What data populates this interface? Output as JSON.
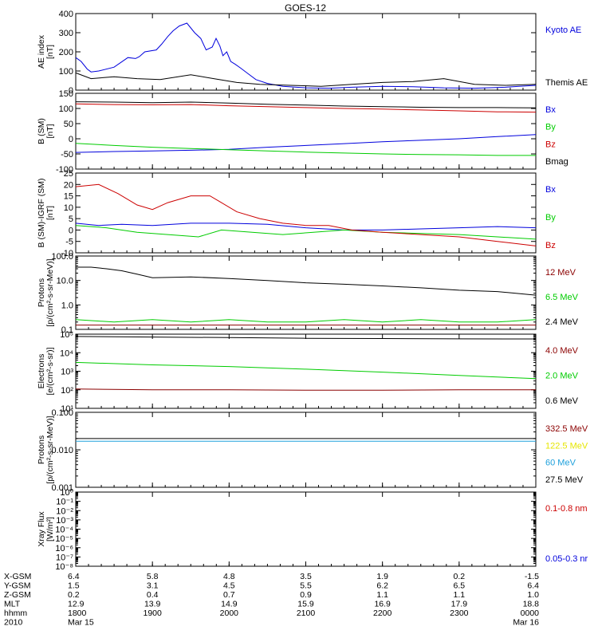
{
  "title": "GOES-12",
  "colors": {
    "black": "#000000",
    "red": "#cc0000",
    "darkred": "#8b0000",
    "green": "#00cc00",
    "blue": "#0000dd",
    "yellow": "#e6e600",
    "cyan": "#1ea0dc"
  },
  "chart_data": [
    {
      "type": "line",
      "title": "",
      "ylabel": [
        "AE index",
        "[nT]"
      ],
      "ylim": [
        0,
        400
      ],
      "yticks": [
        0,
        100,
        200,
        300,
        400
      ],
      "ytick_labels": [
        "0",
        "100",
        "200",
        "300",
        "400"
      ],
      "log": false,
      "legend": [
        {
          "label": "Kyoto AE",
          "color": "blue"
        },
        {
          "label": "Themis AE",
          "color": "black"
        }
      ],
      "series": [
        {
          "name": "Kyoto AE",
          "color": "blue",
          "x": [
            0.0,
            0.07,
            0.15,
            0.2,
            0.3,
            0.5,
            0.68,
            0.78,
            0.83,
            0.9,
            1.05,
            1.12,
            1.2,
            1.27,
            1.35,
            1.45,
            1.55,
            1.63,
            1.7,
            1.78,
            1.83,
            1.88,
            1.92,
            1.97,
            2.02,
            2.08,
            2.15,
            2.25,
            2.35,
            2.5,
            2.7,
            3.0,
            3.3,
            3.6,
            4.0,
            4.4,
            4.8,
            5.2,
            5.6,
            6.0
          ],
          "y": [
            170,
            150,
            110,
            95,
            100,
            120,
            170,
            165,
            175,
            200,
            210,
            240,
            280,
            310,
            335,
            350,
            300,
            270,
            210,
            225,
            270,
            230,
            180,
            200,
            150,
            135,
            115,
            85,
            55,
            35,
            20,
            12,
            10,
            15,
            20,
            18,
            12,
            10,
            15,
            25
          ]
        },
        {
          "name": "Themis AE",
          "color": "black",
          "x": [
            0.0,
            0.2,
            0.5,
            0.8,
            1.1,
            1.5,
            1.8,
            2.1,
            2.4,
            2.8,
            3.2,
            3.6,
            4.0,
            4.4,
            4.8,
            5.2,
            5.6,
            6.0
          ],
          "y": [
            90,
            60,
            70,
            60,
            55,
            80,
            60,
            40,
            30,
            25,
            20,
            30,
            40,
            45,
            60,
            30,
            25,
            30
          ]
        }
      ]
    },
    {
      "type": "line",
      "title": "",
      "ylabel": [
        "B (SM)",
        "[nT]"
      ],
      "ylim": [
        -100,
        150
      ],
      "yticks": [
        -100,
        -50,
        0,
        50,
        100,
        150
      ],
      "ytick_labels": [
        "-100",
        "-50",
        "0",
        "50",
        "100",
        "150"
      ],
      "log": false,
      "legend": [
        {
          "label": "Bx",
          "color": "blue"
        },
        {
          "label": "By",
          "color": "green"
        },
        {
          "label": "Bz",
          "color": "red"
        },
        {
          "label": "Bmag",
          "color": "black"
        }
      ],
      "series": [
        {
          "name": "Bx",
          "color": "blue",
          "x": [
            0,
            0.5,
            1.0,
            1.5,
            2.0,
            2.5,
            3.0,
            3.5,
            4.0,
            4.5,
            5.0,
            5.5,
            6.0
          ],
          "y": [
            -45,
            -42,
            -40,
            -38,
            -35,
            -28,
            -22,
            -16,
            -10,
            -5,
            0,
            7,
            14
          ]
        },
        {
          "name": "By",
          "color": "green",
          "x": [
            0,
            0.5,
            1.0,
            1.5,
            2.0,
            2.5,
            3.0,
            3.5,
            4.0,
            4.5,
            5.0,
            5.5,
            6.0
          ],
          "y": [
            -15,
            -22,
            -28,
            -32,
            -36,
            -40,
            -44,
            -47,
            -50,
            -52,
            -53,
            -55,
            -55
          ]
        },
        {
          "name": "Bz",
          "color": "red",
          "x": [
            0,
            0.5,
            1.0,
            1.5,
            2.0,
            2.5,
            3.0,
            3.5,
            4.0,
            4.5,
            5.0,
            5.5,
            6.0
          ],
          "y": [
            115,
            113,
            112,
            113,
            109,
            106,
            103,
            100,
            98,
            95,
            92,
            89,
            88
          ]
        },
        {
          "name": "Bmag",
          "color": "black",
          "x": [
            0,
            0.5,
            1.0,
            1.5,
            2.0,
            2.5,
            3.0,
            3.5,
            4.0,
            4.5,
            5.0,
            5.5,
            6.0
          ],
          "y": [
            122,
            121,
            119,
            121,
            118,
            114,
            111,
            108,
            106,
            104,
            103,
            103,
            102
          ]
        }
      ]
    },
    {
      "type": "line",
      "title": "",
      "ylabel": [
        "B (SM)-IGRF (SM)",
        "[nT]"
      ],
      "ylim": [
        -10,
        25
      ],
      "yticks": [
        -10,
        -5,
        0,
        5,
        10,
        15,
        20,
        25
      ],
      "ytick_labels": [
        "-10",
        "-5",
        "0",
        "5",
        "10",
        "15",
        "20",
        "25"
      ],
      "log": false,
      "legend": [
        {
          "label": "Bx",
          "color": "blue"
        },
        {
          "label": "By",
          "color": "green"
        },
        {
          "label": "Bz",
          "color": "red"
        }
      ],
      "series": [
        {
          "name": "Bx",
          "color": "blue",
          "x": [
            0,
            0.3,
            0.6,
            1.0,
            1.5,
            2.0,
            2.5,
            3.0,
            3.5,
            4.0,
            4.5,
            5.0,
            5.5,
            6.0
          ],
          "y": [
            3,
            2,
            2.5,
            2,
            3,
            3,
            2.5,
            1,
            0,
            0,
            0.5,
            1,
            1.5,
            1
          ]
        },
        {
          "name": "By",
          "color": "green",
          "x": [
            0,
            0.4,
            0.8,
            1.2,
            1.6,
            1.9,
            2.3,
            2.7,
            3.1,
            3.5,
            4.0,
            4.5,
            5.0,
            5.5,
            6.0
          ],
          "y": [
            2,
            1,
            -1,
            -2,
            -3,
            0,
            -1,
            -2,
            -1,
            0,
            -1,
            -1.5,
            -2,
            -3,
            -4
          ]
        },
        {
          "name": "Bz",
          "color": "red",
          "x": [
            0,
            0.3,
            0.55,
            0.8,
            1.0,
            1.2,
            1.5,
            1.75,
            1.9,
            2.1,
            2.4,
            2.7,
            3.0,
            3.3,
            3.6,
            4.0,
            4.5,
            5.0,
            5.5,
            6.0
          ],
          "y": [
            19,
            20,
            16,
            11,
            9,
            12,
            15,
            15,
            12,
            8,
            5,
            3,
            2,
            2,
            0,
            -1,
            -2,
            -3,
            -5,
            -7
          ]
        }
      ]
    },
    {
      "type": "line",
      "title": "",
      "ylabel": [
        "Protons",
        "[p/(cm²-s-sr-MeV)]"
      ],
      "ylim": [
        0.1,
        100
      ],
      "yticks": [
        0.1,
        1,
        10,
        100
      ],
      "ytick_labels": [
        "0.1",
        "1.0",
        "10.0",
        "100.0"
      ],
      "log": true,
      "legend": [
        {
          "label": "12 MeV",
          "color": "darkred"
        },
        {
          "label": "6.5 MeV",
          "color": "green"
        },
        {
          "label": "2.4 MeV",
          "color": "black"
        }
      ],
      "series": [
        {
          "name": "2.4 MeV",
          "color": "black",
          "x": [
            0,
            0.2,
            0.4,
            0.6,
            0.8,
            1.0,
            1.5,
            2.0,
            2.5,
            3.0,
            3.5,
            4.0,
            4.5,
            5.0,
            5.5,
            6.0
          ],
          "y": [
            35,
            35,
            30,
            25,
            18,
            13,
            14,
            12,
            10,
            8,
            7,
            6,
            5,
            4,
            3.5,
            2.5
          ]
        },
        {
          "name": "6.5 MeV",
          "color": "green",
          "x": [
            0,
            0.5,
            1.0,
            1.5,
            2.0,
            2.5,
            3.0,
            3.5,
            4.0,
            4.5,
            5.0,
            5.5,
            6.0
          ],
          "y": [
            0.25,
            0.2,
            0.25,
            0.2,
            0.25,
            0.2,
            0.2,
            0.25,
            0.2,
            0.25,
            0.2,
            0.2,
            0.25
          ]
        },
        {
          "name": "12 MeV",
          "color": "darkred",
          "x": [
            0,
            1.0,
            2.0,
            3.0,
            4.0,
            5.0,
            6.0
          ],
          "y": [
            0.15,
            0.15,
            0.15,
            0.15,
            0.15,
            0.15,
            0.15
          ]
        }
      ]
    },
    {
      "type": "line",
      "title": "",
      "ylabel": [
        "Electrons",
        "[e/(cm²-s-sr)]"
      ],
      "ylim": [
        10,
        100000
      ],
      "yticks": [
        10,
        100,
        1000,
        10000,
        100000
      ],
      "ytick_labels": [
        "10¹",
        "10²",
        "10³",
        "10⁴",
        "10⁵"
      ],
      "log": true,
      "legend": [
        {
          "label": "4.0 MeV",
          "color": "darkred"
        },
        {
          "label": "2.0 MeV",
          "color": "green"
        },
        {
          "label": "0.6 MeV",
          "color": "black"
        }
      ],
      "series": [
        {
          "name": "0.6 MeV",
          "color": "black",
          "x": [
            0,
            1.0,
            2.0,
            3.0,
            4.0,
            5.0,
            6.0
          ],
          "y": [
            75000,
            70000,
            65000,
            60000,
            58000,
            56000,
            55000
          ]
        },
        {
          "name": "2.0 MeV",
          "color": "green",
          "x": [
            0,
            1.0,
            2.0,
            3.0,
            4.0,
            5.0,
            6.0
          ],
          "y": [
            3000,
            2200,
            1800,
            1300,
            900,
            600,
            400
          ]
        },
        {
          "name": "4.0 MeV",
          "color": "darkred",
          "x": [
            0,
            1.0,
            2.0,
            3.0,
            4.0,
            5.0,
            6.0
          ],
          "y": [
            110,
            100,
            100,
            95,
            95,
            100,
            100
          ]
        }
      ]
    },
    {
      "type": "line",
      "title": "",
      "ylabel": [
        "Protons",
        "[p/(cm²-s-sr-MeV)]"
      ],
      "ylim": [
        0.001,
        0.1
      ],
      "yticks": [
        0.001,
        0.01,
        0.1
      ],
      "ytick_labels": [
        "0.001",
        "0.010",
        "0.100"
      ],
      "log": true,
      "legend": [
        {
          "label": "332.5 MeV",
          "color": "darkred"
        },
        {
          "label": "122.5 MeV",
          "color": "yellow"
        },
        {
          "label": "60 MeV",
          "color": "cyan"
        },
        {
          "label": "27.5 MeV",
          "color": "black"
        }
      ],
      "series": [
        {
          "name": "27.5 MeV",
          "color": "black",
          "x": [
            0,
            2.0,
            4.0,
            6.0
          ],
          "y": [
            0.02,
            0.02,
            0.02,
            0.02
          ]
        },
        {
          "name": "60 MeV",
          "color": "cyan",
          "x": [
            0,
            2.0,
            4.0,
            6.0
          ],
          "y": [
            0.017,
            0.017,
            0.017,
            0.017
          ]
        }
      ]
    },
    {
      "type": "line",
      "title": "",
      "ylabel": [
        "Xray Flux",
        "[W/m²]"
      ],
      "ylim": [
        1e-08,
        1
      ],
      "yticks": [
        1e-08,
        1e-07,
        1e-06,
        1e-05,
        0.0001,
        0.001,
        0.01,
        0.1,
        1
      ],
      "ytick_labels": [
        "10⁻⁸",
        "10⁻⁷",
        "10⁻⁶",
        "10⁻⁵",
        "10⁻⁴",
        "10⁻³",
        "10⁻²",
        "10⁻¹",
        "10⁰"
      ],
      "log": true,
      "legend": [
        {
          "label": "0.1-0.8 nm",
          "color": "red"
        },
        {
          "label": "0.05-0.3 nr",
          "color": "blue"
        }
      ],
      "series": []
    }
  ],
  "footer": {
    "rows": [
      {
        "label": "X-GSM",
        "values": [
          "6.4",
          "5.8",
          "4.8",
          "3.5",
          "1.9",
          "0.2",
          "-1.5"
        ]
      },
      {
        "label": "Y-GSM",
        "values": [
          "1.5",
          "3.1",
          "4.5",
          "5.5",
          "6.2",
          "6.5",
          "6.4"
        ]
      },
      {
        "label": "Z-GSM",
        "values": [
          "0.2",
          "0.4",
          "0.7",
          "0.9",
          "1.1",
          "1.1",
          "1.0"
        ]
      },
      {
        "label": "MLT",
        "values": [
          "12.9",
          "13.9",
          "14.9",
          "15.9",
          "16.9",
          "17.9",
          "18.8"
        ]
      },
      {
        "label": "hhmm",
        "values": [
          "1800",
          "1900",
          "2000",
          "2100",
          "2200",
          "2300",
          "0000"
        ]
      },
      {
        "label": "2010",
        "values": [
          "Mar 15",
          "",
          "",
          "",
          "",
          "",
          "Mar 16"
        ]
      }
    ]
  }
}
